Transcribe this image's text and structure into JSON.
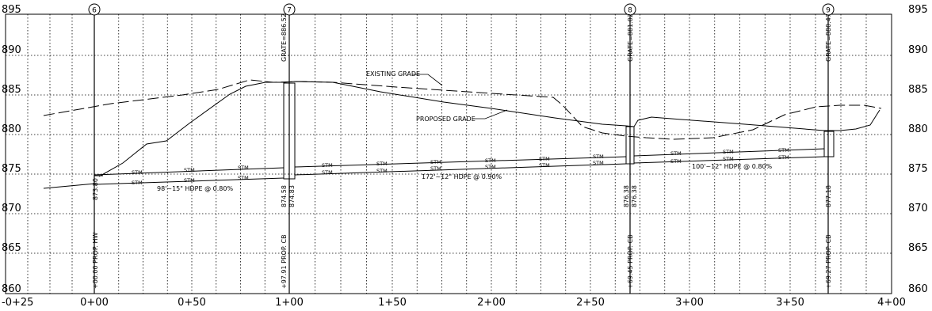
{
  "elevation_labels": [
    "895",
    "890",
    "885",
    "880",
    "875",
    "870",
    "865",
    "860"
  ],
  "station_labels": [
    "-0+25",
    "0+00",
    "0+50",
    "1+00",
    "1+50",
    "2+00",
    "2+50",
    "3+00",
    "3+50",
    "4+00"
  ],
  "structures": [
    {
      "number": "6",
      "station_text": "+00.00 PROP. HW",
      "invert": "873.80",
      "grate": "",
      "inverts2": ""
    },
    {
      "number": "7",
      "station_text": "+97.91 PROP. CB",
      "invert": "874.58",
      "invert2": "874.83",
      "grate": "GRATE=886.52"
    },
    {
      "number": "8",
      "station_text": "+69.45 PROP. CB",
      "invert": "876.38",
      "invert2": "876.38",
      "grate": "GRATE=881.02"
    },
    {
      "number": "9",
      "station_text": "+69.27 PROP. CB",
      "invert": "877.18",
      "invert2": "",
      "grate": "GRATE=880.47"
    }
  ],
  "annotations": {
    "existing_grade": "EXISTING GRADE",
    "proposed_grade": "PROPOSED GRADE",
    "pipe1": "98'~15\" HDPE @ 0.80%",
    "pipe2": "172'~12\" HDPE @ 0.90%",
    "pipe3": "100'~12\" HDPE @ 0.80%",
    "stm": "STM"
  }
}
